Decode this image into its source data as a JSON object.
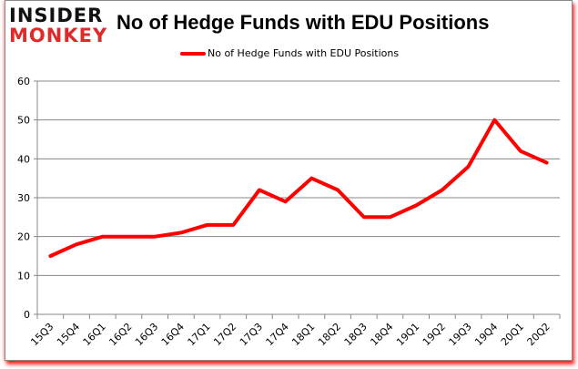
{
  "logo": {
    "line1": "INSIDER",
    "line2": "MONKEY"
  },
  "chart_data": {
    "type": "line",
    "title": "No of Hedge Funds with EDU Positions",
    "xlabel": "",
    "ylabel": "",
    "ylim": [
      0,
      60
    ],
    "yticks": [
      0,
      10,
      20,
      30,
      40,
      50,
      60
    ],
    "grid": true,
    "legend_position": "top",
    "categories": [
      "15Q3",
      "15Q4",
      "16Q1",
      "16Q2",
      "16Q3",
      "16Q4",
      "17Q1",
      "17Q2",
      "17Q3",
      "17Q4",
      "18Q1",
      "18Q2",
      "18Q3",
      "18Q4",
      "19Q1",
      "19Q2",
      "19Q3",
      "19Q4",
      "20Q1",
      "20Q2"
    ],
    "series": [
      {
        "name": "No of Hedge Funds with EDU Positions",
        "color": "#ff0000",
        "values": [
          15,
          18,
          20,
          20,
          20,
          21,
          23,
          23,
          32,
          29,
          35,
          32,
          25,
          25,
          28,
          32,
          38,
          50,
          42,
          39
        ]
      }
    ]
  },
  "colors": {
    "line": "#ff0000",
    "grid": "#888888",
    "logo_dark": "#111111",
    "logo_red": "#e02a2a",
    "frame_shadow": "#ff0000"
  }
}
